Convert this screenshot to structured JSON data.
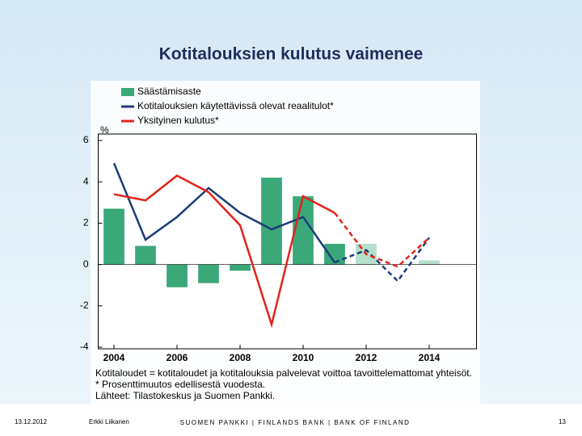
{
  "chart_data": {
    "type": "bar_line",
    "title": "Kotitalouksien kulutus vaimenee",
    "y_unit": "%",
    "x": [
      2004,
      2005,
      2006,
      2007,
      2008,
      2009,
      2010,
      2011,
      2012,
      2013,
      2014
    ],
    "xlim": [
      2003.5,
      2015.5
    ],
    "xticks": [
      2004,
      2006,
      2008,
      2010,
      2012,
      2014
    ],
    "ylim": [
      -4,
      6
    ],
    "yticks": [
      6,
      4,
      2,
      0,
      -2,
      -4
    ],
    "grid": false,
    "forecast_from": 2011,
    "series": [
      {
        "name": "Säästämisaste",
        "kind": "bar",
        "color": "#3aa878",
        "forecast_color": "#b4e0cc",
        "values": [
          2.7,
          0.9,
          -1.1,
          -0.9,
          -0.3,
          4.2,
          3.3,
          1.0,
          1.0,
          0.0,
          0.2
        ]
      },
      {
        "name": "Kotitalouksien käytettävissä olevat reaalitulot*",
        "kind": "line",
        "color": "#1c3c78",
        "values": [
          4.9,
          1.2,
          2.3,
          3.7,
          2.5,
          1.7,
          2.3,
          0.1,
          0.7,
          -0.8,
          1.3
        ]
      },
      {
        "name": "Yksityinen kulutus*",
        "kind": "line",
        "color": "#e2231a",
        "values": [
          3.4,
          3.1,
          4.3,
          3.5,
          1.9,
          -2.9,
          3.3,
          2.5,
          0.5,
          -0.1,
          1.3
        ]
      }
    ],
    "notes": [
      "Kotitaloudet = kotitaloudet ja kotitalouksia palvelevat voittoa tavoittelemattomat yhteisöt.",
      "* Prosenttimuutos edellisestä vuodesta.",
      "Lähteet: Tilastokeskus ja Suomen Pankki."
    ]
  },
  "footer": {
    "date": "13.12.2012",
    "author": "Erkki Liikanen",
    "organization": "SUOMEN PANKKI | FINLANDS BANK | BANK OF FINLAND",
    "page": "13"
  }
}
